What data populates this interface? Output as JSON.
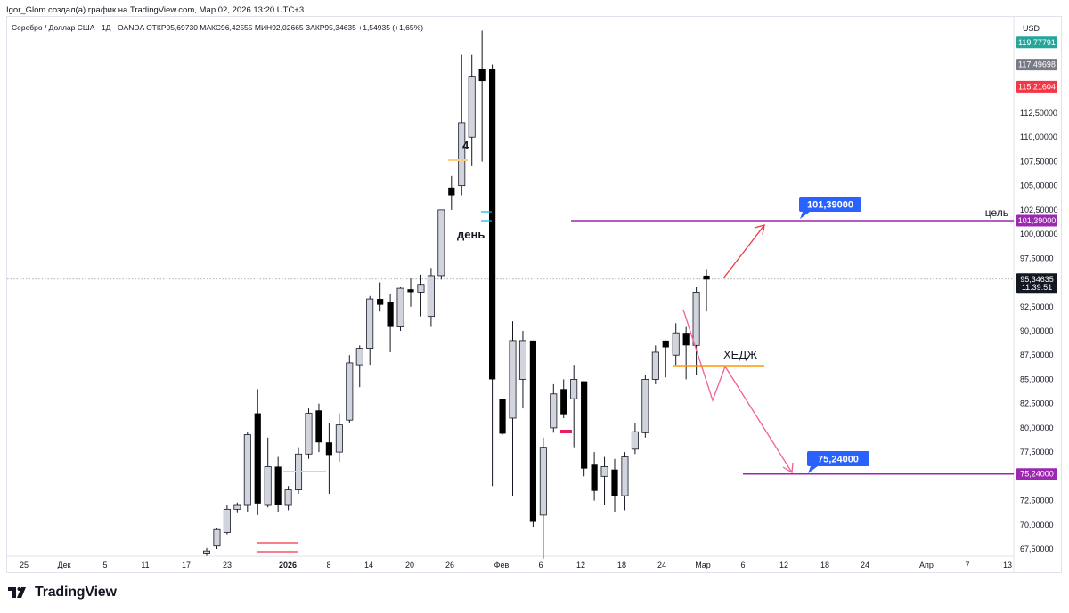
{
  "header": {
    "creator_text": "Igor_Glom создал(а) график на TradingView.com, Мар 02, 2026 13:20 UTC+3"
  },
  "legend": {
    "text": "Серебро / Доллар США · 1Д · OANDA  ОТКР95,69730  МАКС96,42555  МИН92,02665  ЗАКР95,34635  +1,54935 (+1,65%)"
  },
  "footer": {
    "brand": "TradingView"
  },
  "colors": {
    "up_body": "#d1d4dc",
    "down_body": "#000000",
    "target": "#9c27b0",
    "arrow": "#f23645",
    "hedge": "#ff9800",
    "label_blue": "#2962ff"
  },
  "price_axis": {
    "currency": "USD",
    "ticks": [
      "112,50000",
      "110,00000",
      "107,50000",
      "105,00000",
      "102,50000",
      "100,00000",
      "97,50000",
      "92,50000",
      "90,00000",
      "87,50000",
      "85,00000",
      "82,50000",
      "80,00000",
      "77,50000",
      "72,50000",
      "70,00000",
      "67,50000"
    ],
    "badges": [
      {
        "text": "119,77791",
        "color": "#26a69a"
      },
      {
        "text": "117,49698",
        "color": "#787b86"
      },
      {
        "text": "115,21604",
        "color": "#f23645"
      },
      {
        "text": "101,39000",
        "color": "#9c27b0"
      },
      {
        "text": "95,34635",
        "sub": "11:39:51",
        "color": "#131722"
      },
      {
        "text": "75,24000",
        "color": "#9c27b0"
      }
    ]
  },
  "time_axis": {
    "labels": [
      "25",
      "Дек",
      "5",
      "11",
      "17",
      "23",
      "2026",
      "8",
      "14",
      "20",
      "26",
      "Фев",
      "6",
      "12",
      "18",
      "24",
      "Мар",
      "6",
      "12",
      "18",
      "24",
      "Апр",
      "7",
      "13"
    ]
  },
  "annotations": {
    "target_upper_label": "101,39000",
    "target_lower_label": "75,24000",
    "target_word": "цель",
    "hedge_word": "ХЕДЖ",
    "day_word": "день",
    "four_word": "4"
  },
  "chart_data": {
    "type": "candlestick",
    "symbol": "Серебро / Доллар США",
    "interval": "1Д",
    "source": "OANDA",
    "ylim": [
      66.5,
      121.5
    ],
    "horizontal_levels": [
      101.39,
      75.24,
      95.34635
    ],
    "candles": [
      {
        "o": 67.0,
        "h": 67.6,
        "l": 66.8,
        "c": 67.3
      },
      {
        "o": 67.8,
        "h": 69.7,
        "l": 67.5,
        "c": 69.5
      },
      {
        "o": 69.2,
        "h": 72.0,
        "l": 69.0,
        "c": 71.6
      },
      {
        "o": 71.6,
        "h": 72.3,
        "l": 71.2,
        "c": 72.0
      },
      {
        "o": 72.0,
        "h": 79.6,
        "l": 71.3,
        "c": 79.3
      },
      {
        "o": 81.5,
        "h": 84.0,
        "l": 71.0,
        "c": 72.2
      },
      {
        "o": 72.0,
        "h": 79.0,
        "l": 71.8,
        "c": 76.0
      },
      {
        "o": 76.0,
        "h": 77.0,
        "l": 71.3,
        "c": 72.0
      },
      {
        "o": 72.0,
        "h": 74.0,
        "l": 71.5,
        "c": 73.6
      },
      {
        "o": 73.6,
        "h": 78.0,
        "l": 73.2,
        "c": 77.3
      },
      {
        "o": 77.3,
        "h": 82.0,
        "l": 76.8,
        "c": 81.5
      },
      {
        "o": 81.8,
        "h": 82.5,
        "l": 77.5,
        "c": 78.5
      },
      {
        "o": 78.5,
        "h": 80.5,
        "l": 73.2,
        "c": 77.2
      },
      {
        "o": 77.5,
        "h": 81.5,
        "l": 76.5,
        "c": 80.3
      },
      {
        "o": 80.8,
        "h": 87.5,
        "l": 80.5,
        "c": 86.7
      },
      {
        "o": 86.5,
        "h": 88.5,
        "l": 84.2,
        "c": 88.2
      },
      {
        "o": 88.2,
        "h": 93.6,
        "l": 86.5,
        "c": 93.3
      },
      {
        "o": 93.3,
        "h": 95.0,
        "l": 92.0,
        "c": 92.7
      },
      {
        "o": 93.0,
        "h": 93.8,
        "l": 87.8,
        "c": 90.5
      },
      {
        "o": 90.5,
        "h": 94.5,
        "l": 90.0,
        "c": 94.4
      },
      {
        "o": 94.3,
        "h": 95.4,
        "l": 92.5,
        "c": 94.0
      },
      {
        "o": 94.0,
        "h": 95.8,
        "l": 91.5,
        "c": 94.8
      },
      {
        "o": 91.5,
        "h": 96.5,
        "l": 90.5,
        "c": 95.7
      },
      {
        "o": 95.7,
        "h": 102.0,
        "l": 95.3,
        "c": 102.5
      },
      {
        "o": 104.8,
        "h": 106.0,
        "l": 102.5,
        "c": 104.0
      },
      {
        "o": 105.0,
        "h": 118.5,
        "l": 104.0,
        "c": 111.5
      },
      {
        "o": 110.0,
        "h": 118.5,
        "l": 107.0,
        "c": 116.3
      },
      {
        "o": 117.0,
        "h": 121.0,
        "l": 107.5,
        "c": 115.8
      },
      {
        "o": 117.0,
        "h": 117.5,
        "l": 74.0,
        "c": 85.0
      },
      {
        "o": 83.0,
        "h": 83.0,
        "l": 79.3,
        "c": 79.4
      },
      {
        "o": 81.0,
        "h": 91.0,
        "l": 73.0,
        "c": 89.0
      },
      {
        "o": 85.0,
        "h": 90.0,
        "l": 82.0,
        "c": 89.0
      },
      {
        "o": 89.0,
        "h": 89.0,
        "l": 69.8,
        "c": 70.3
      },
      {
        "o": 71.0,
        "h": 79.0,
        "l": 66.5,
        "c": 78.0
      },
      {
        "o": 80.0,
        "h": 84.5,
        "l": 79.5,
        "c": 83.5
      },
      {
        "o": 84.0,
        "h": 85.0,
        "l": 81.0,
        "c": 81.4
      },
      {
        "o": 83.0,
        "h": 86.5,
        "l": 78.0,
        "c": 85.0
      },
      {
        "o": 84.8,
        "h": 84.8,
        "l": 75.0,
        "c": 75.8
      },
      {
        "o": 76.2,
        "h": 77.5,
        "l": 72.5,
        "c": 73.5
      },
      {
        "o": 75.0,
        "h": 77.0,
        "l": 72.0,
        "c": 76.0
      },
      {
        "o": 75.7,
        "h": 76.8,
        "l": 71.3,
        "c": 73.0
      },
      {
        "o": 73.0,
        "h": 77.5,
        "l": 71.5,
        "c": 77.0
      },
      {
        "o": 77.8,
        "h": 80.5,
        "l": 77.3,
        "c": 79.6
      },
      {
        "o": 79.5,
        "h": 85.5,
        "l": 79.0,
        "c": 85.0
      },
      {
        "o": 85.0,
        "h": 88.5,
        "l": 84.5,
        "c": 87.8
      },
      {
        "o": 89.0,
        "h": 89.0,
        "l": 85.2,
        "c": 88.3
      },
      {
        "o": 87.5,
        "h": 90.8,
        "l": 86.5,
        "c": 89.8
      },
      {
        "o": 89.8,
        "h": 90.5,
        "l": 85.0,
        "c": 88.5
      },
      {
        "o": 88.5,
        "h": 94.5,
        "l": 85.5,
        "c": 94.0
      },
      {
        "o": 95.7,
        "h": 96.4,
        "l": 92.0,
        "c": 95.3
      }
    ]
  }
}
